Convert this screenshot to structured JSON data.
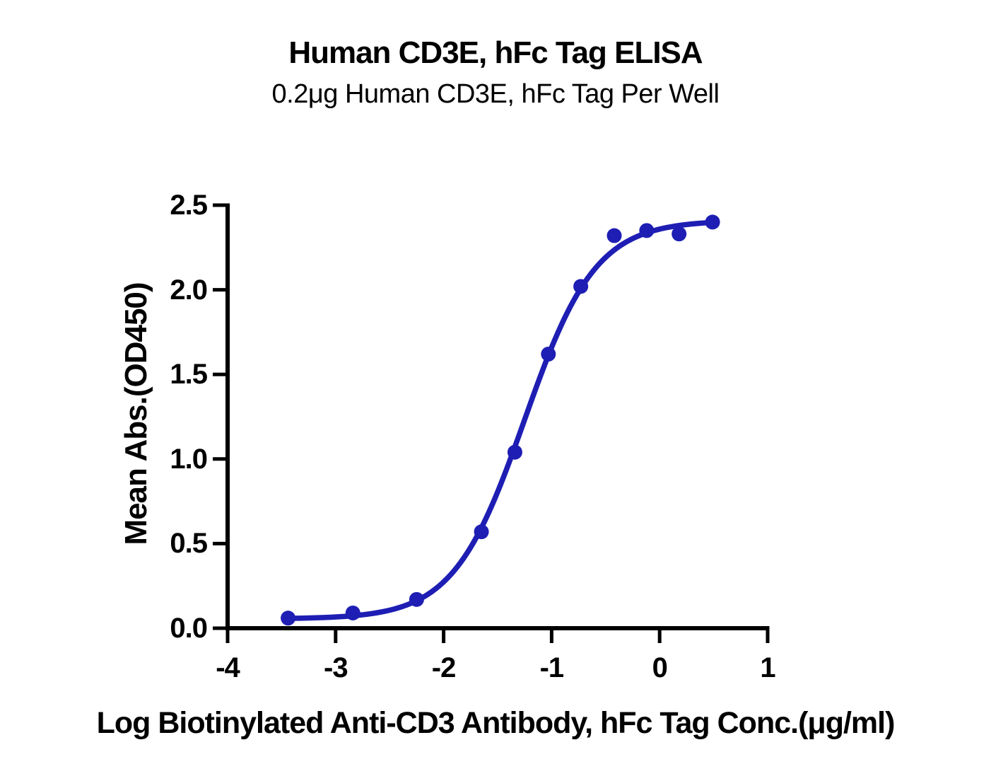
{
  "figure": {
    "background_color": "#ffffff",
    "text_color": "#000000"
  },
  "chart_data": {
    "type": "scatter",
    "title": "Human CD3E, hFc Tag ELISA",
    "subtitle": "0.2μg Human CD3E, hFc Tag Per Well",
    "xlabel": "Log Biotinylated Anti-CD3 Antibody, hFc Tag Conc.(μg/ml)",
    "ylabel": "Mean Abs.(OD450)",
    "xlim": [
      -4,
      1
    ],
    "ylim": [
      0,
      2.5
    ],
    "x_ticks": [
      -4,
      -3,
      -2,
      -1,
      0,
      1
    ],
    "x_tick_labels": [
      "-4",
      "-3",
      "-2",
      "-1",
      "0",
      "1"
    ],
    "y_ticks": [
      0,
      0.5,
      1,
      1.5,
      2,
      2.5
    ],
    "y_tick_labels": [
      "0.0",
      "0.5",
      "1.0",
      "1.5",
      "2.0",
      "2.5"
    ],
    "grid": false,
    "legend": "none",
    "axis_color": "#000000",
    "series": [
      {
        "name": "Human CD3E, hFc Tag",
        "color": "#1e1eb4",
        "marker": "circle",
        "points": [
          {
            "x": -3.44,
            "y": 0.06
          },
          {
            "x": -2.84,
            "y": 0.09
          },
          {
            "x": -2.25,
            "y": 0.17
          },
          {
            "x": -1.65,
            "y": 0.57
          },
          {
            "x": -1.34,
            "y": 1.04
          },
          {
            "x": -1.03,
            "y": 1.62
          },
          {
            "x": -0.73,
            "y": 2.02
          },
          {
            "x": -0.42,
            "y": 2.32
          },
          {
            "x": -0.12,
            "y": 2.35
          },
          {
            "x": 0.18,
            "y": 2.33
          },
          {
            "x": 0.49,
            "y": 2.4
          }
        ]
      }
    ],
    "fit_curve": {
      "model": "4PL",
      "bottom": 0.055,
      "top": 2.41,
      "log_ec50": -1.25,
      "hill": 1.32,
      "x_start": -3.44,
      "x_end": 0.49,
      "color": "#1e1eb4"
    }
  }
}
